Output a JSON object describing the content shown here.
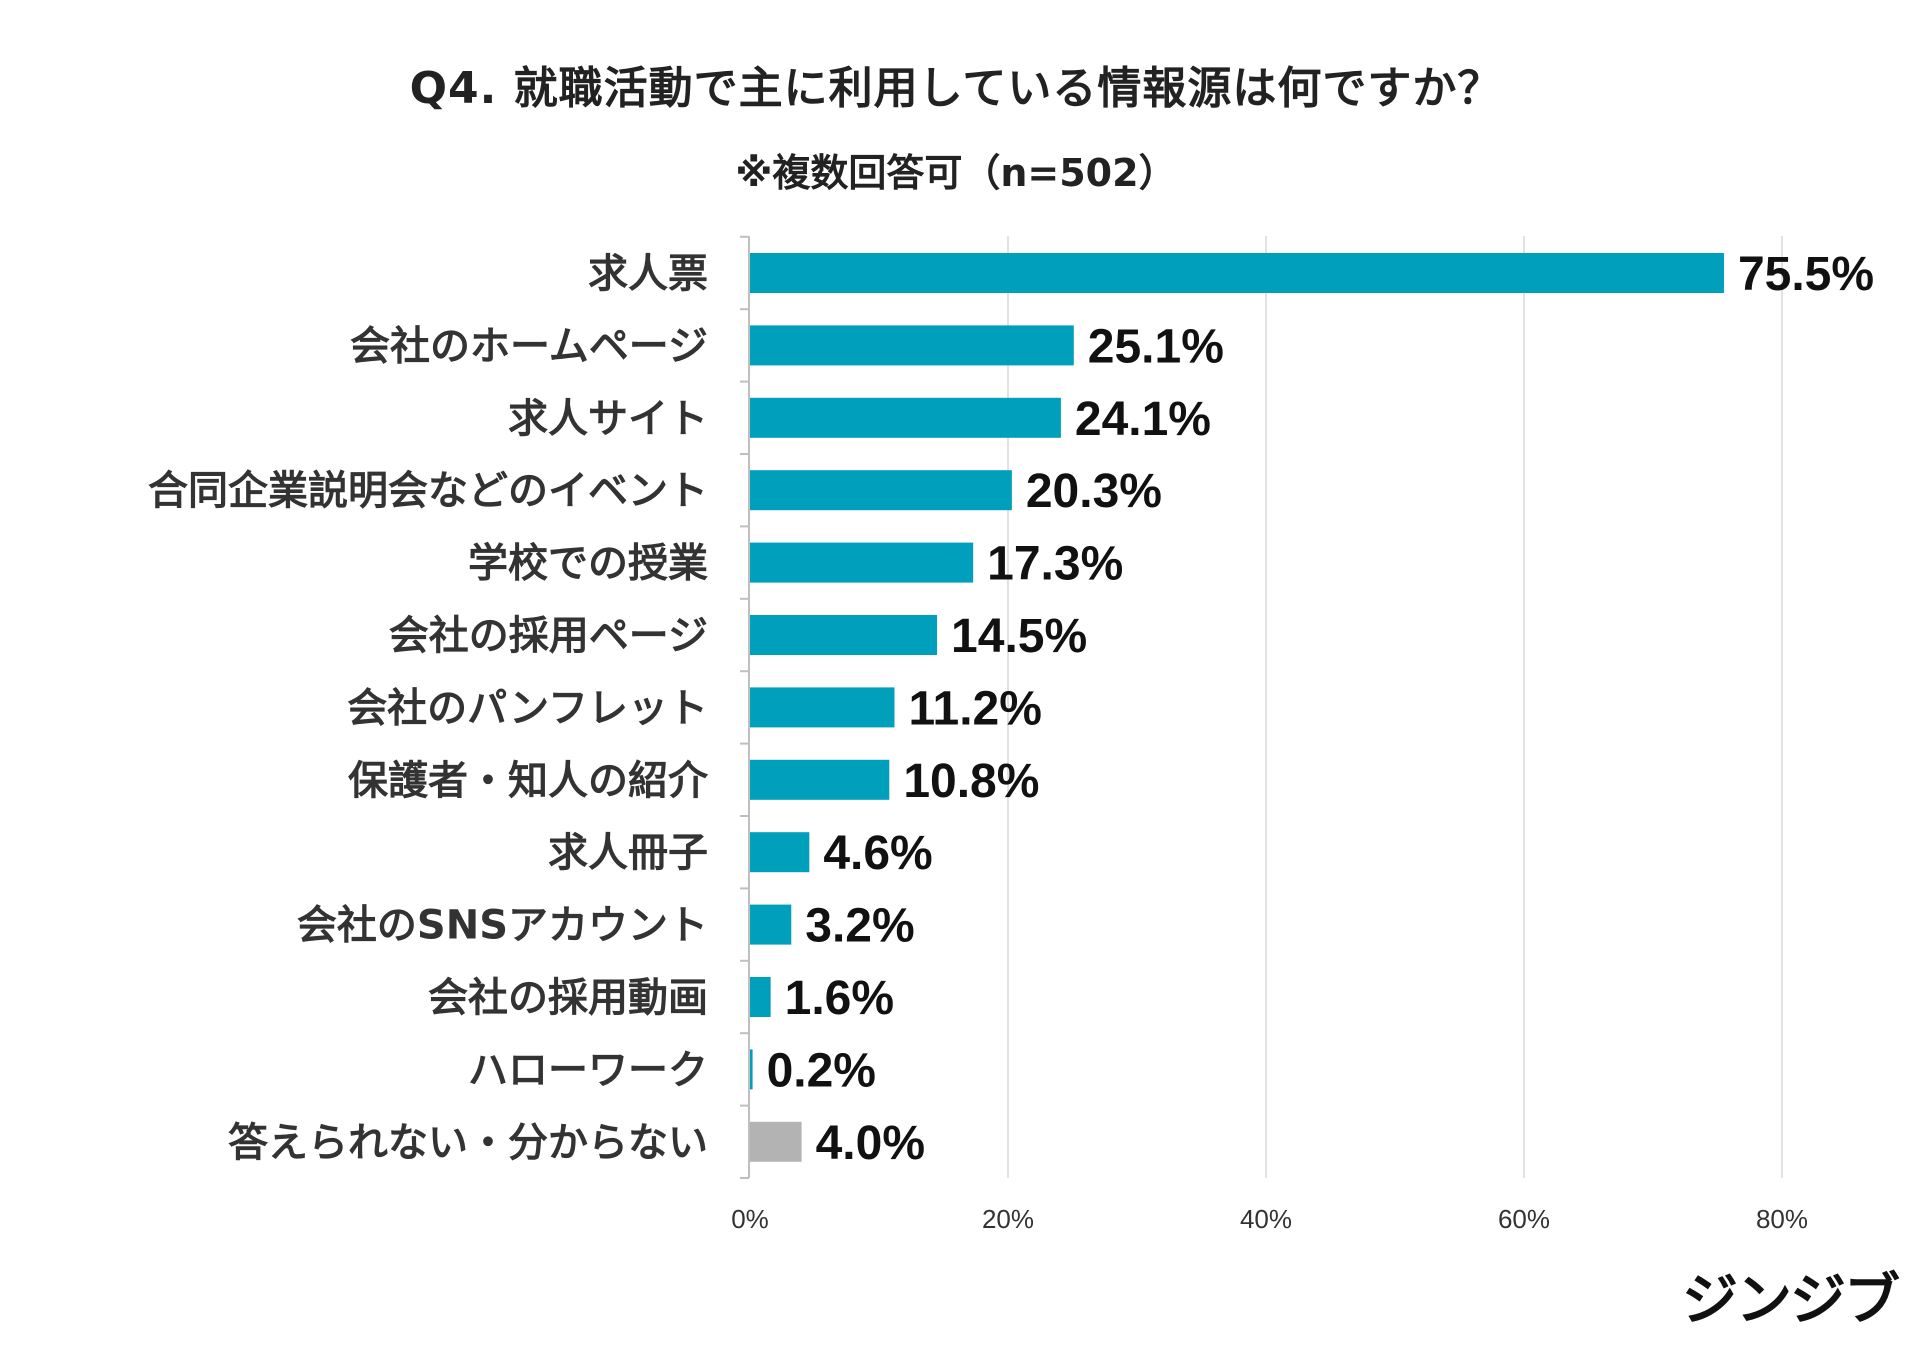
{
  "chart_data": {
    "type": "bar",
    "orientation": "horizontal",
    "title": "Q4.  就職活動で主に利用している情報源は何ですか？",
    "subtitle": "※複数回答可（n=502）",
    "categories": [
      "求人票",
      "会社のホームページ",
      "求人サイト",
      "合同企業説明会などのイベント",
      "学校での授業",
      "会社の採用ページ",
      "会社のパンフレット",
      "保護者・知人の紹介",
      "求人冊子",
      "会社のSNSアカウント",
      "会社の採用動画",
      "ハローワーク",
      "答えられない・分からない"
    ],
    "values": [
      75.5,
      25.1,
      24.1,
      20.3,
      17.3,
      14.5,
      11.2,
      10.8,
      4.6,
      3.2,
      1.6,
      0.2,
      4.0
    ],
    "value_labels": [
      "75.5%",
      "25.1%",
      "24.1%",
      "20.3%",
      "17.3%",
      "14.5%",
      "11.2%",
      "10.8%",
      "4.6%",
      "3.2%",
      "1.6%",
      "0.2%",
      "4.0%"
    ],
    "bar_colors": [
      "#00a0bc",
      "#00a0bc",
      "#00a0bc",
      "#00a0bc",
      "#00a0bc",
      "#00a0bc",
      "#00a0bc",
      "#00a0bc",
      "#00a0bc",
      "#00a0bc",
      "#00a0bc",
      "#00a0bc",
      "#b3b3b3"
    ],
    "xlim": [
      0,
      80
    ],
    "x_ticks": [
      0,
      20,
      40,
      60,
      80
    ],
    "x_tick_labels": [
      "0%",
      "20%",
      "40%",
      "60%",
      "80%"
    ],
    "grid": true,
    "legend": "none"
  },
  "brand": {
    "logo_text": "ジンジブ"
  }
}
